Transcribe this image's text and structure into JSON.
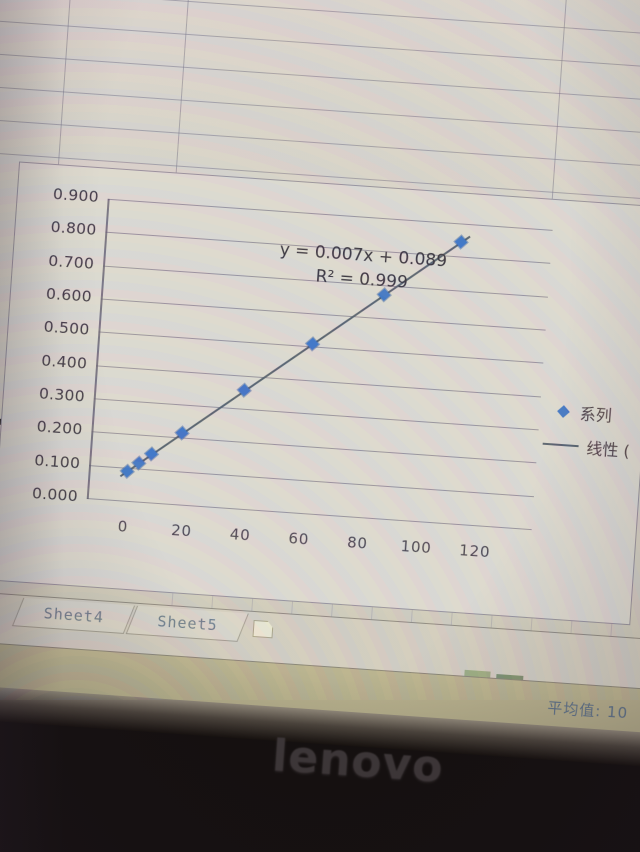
{
  "chart_data": {
    "type": "scatter",
    "title": "",
    "xlabel": "",
    "ylabel": "",
    "series": [
      {
        "name": "系列",
        "marker": "diamond",
        "color": "#3e74c6",
        "x": [
          0,
          4,
          8,
          18,
          38,
          60,
          83,
          108
        ],
        "y": [
          0.089,
          0.117,
          0.145,
          0.215,
          0.355,
          0.509,
          0.67,
          0.845
        ]
      }
    ],
    "trendline": {
      "type": "linear",
      "label": "线性 (",
      "slope": 0.007,
      "intercept": 0.089,
      "equation": "y = 0.007x + 0.089",
      "r_squared_text": "R² = 0.999",
      "color": "#56606e"
    },
    "xlim": [
      0,
      120
    ],
    "ylim": [
      0,
      0.9
    ],
    "x_ticks": [
      "0",
      "20",
      "40",
      "60",
      "80",
      "100",
      "120"
    ],
    "y_ticks": [
      "0.900",
      "0.800",
      "0.700",
      "0.600",
      "0.500",
      "0.400",
      "0.300",
      "0.200",
      "0.100",
      "0.000"
    ],
    "grid": true,
    "legend_position": "right"
  },
  "annotation": {
    "equation": "y = 0.007x + 0.089",
    "r_squared": "R² = 0.999"
  },
  "legend": {
    "items": [
      {
        "label": "系列",
        "marker": "diamond-marker"
      },
      {
        "label": "线性 (",
        "marker": "line-marker"
      }
    ]
  },
  "sheet_bar": {
    "tabs": [
      "Sheet4",
      "Sheet5"
    ]
  },
  "status_bar": {
    "average_text": "平均值: 10"
  },
  "monitor": {
    "brand_logo": "lenovo"
  },
  "colors": {
    "marker_blue": "#3e74c6",
    "trend_line": "#56606e",
    "screen_bg": "#d6d1c8",
    "status_olive": "#b3ad8c",
    "bezel_black": "#14100f"
  }
}
